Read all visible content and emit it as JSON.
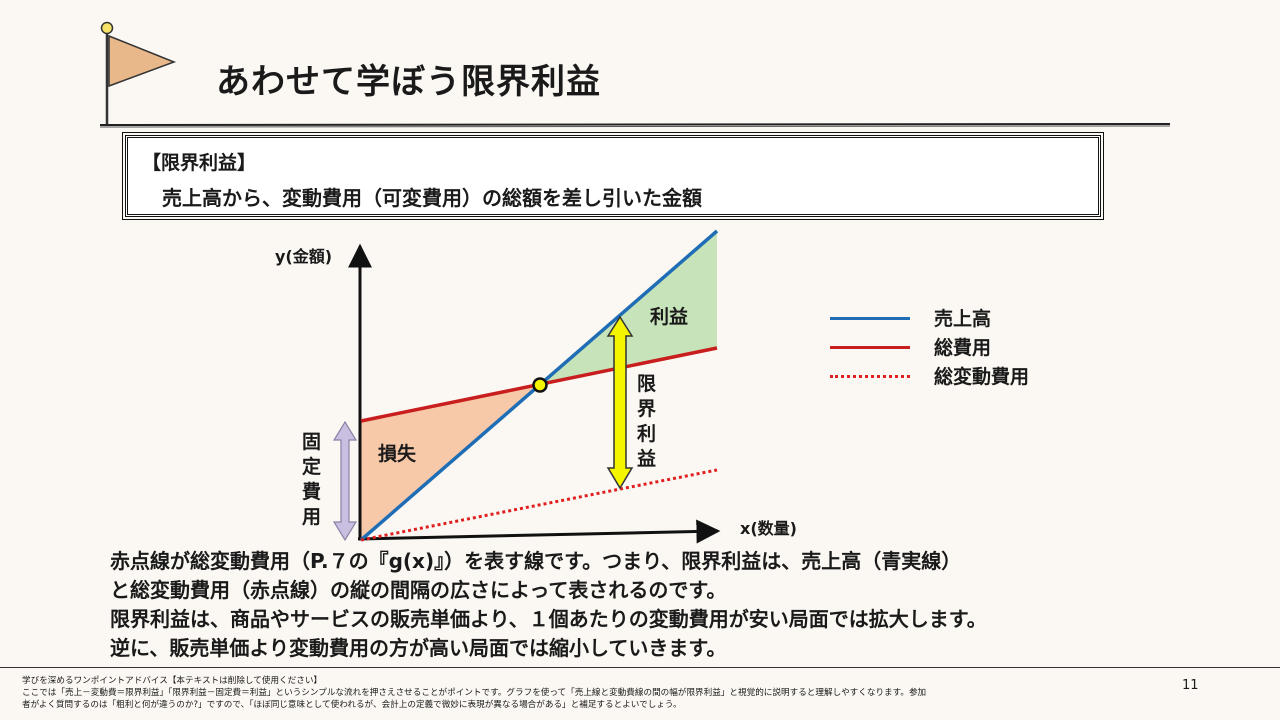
{
  "header": {
    "title": "あわせて学ぼう限界利益"
  },
  "definition": {
    "heading": "【限界利益】",
    "text": "売上高から、変動費用（可変費用）の総額を差し引いた金額"
  },
  "diagram": {
    "y_axis_label": "y(金額)",
    "x_axis_label": "x(数量)",
    "profit_label": "利益",
    "loss_label": "損失",
    "marginal_profit_label": [
      "限",
      "界",
      "利",
      "益"
    ],
    "fixed_cost_label": [
      "固",
      "定",
      "費",
      "用"
    ],
    "colors": {
      "sales_line": "#1f6db5",
      "total_cost_line": "#c81e1e",
      "variable_cost_line": "#e02020",
      "profit_fill": "#c7e3b9",
      "loss_fill": "#f7c9a9",
      "marginal_arrow": "#f5f500",
      "fixed_arrow": "#c9bfe0",
      "break_even_point": "#f5f500"
    }
  },
  "legend": {
    "items": [
      {
        "label": "売上高",
        "color": "#1f6db5",
        "style": "solid"
      },
      {
        "label": "総費用",
        "color": "#c81e1e",
        "style": "solid"
      },
      {
        "label": "総変動費用",
        "color": "#e02020",
        "style": "dotted"
      }
    ]
  },
  "explanation": {
    "lines": [
      "赤点線が総変動費用（P.７の『g(x)』）を表す線です。つまり、限界利益は、売上高（青実線）",
      "と総変動費用（赤点線）の縦の間隔の広さによって表されるのです。",
      "限界利益は、商品やサービスの販売単価より、１個あたりの変動費用が安い局面では拡大します。",
      "逆に、販売単価より変動費用の方が高い局面では縮小していきます。"
    ]
  },
  "notes": {
    "lines": [
      "学びを深めるワンポイントアドバイス【本テキストは削除して使用ください】",
      "ここでは「売上－変動費＝限界利益」「限界利益－固定費＝利益」というシンプルな流れを押さえさせることがポイントです。グラフを使って「売上線と変動費線の間の幅が限界利益」と視覚的に説明すると理解しやすくなります。参加",
      "者がよく質問するのは「粗利と何が違うのか?」ですので、「ほぼ同じ意味として使われるが、会計上の定義で微妙に表現が異なる場合がある」と補足するとよいでしょう。"
    ]
  },
  "page_number": "11"
}
